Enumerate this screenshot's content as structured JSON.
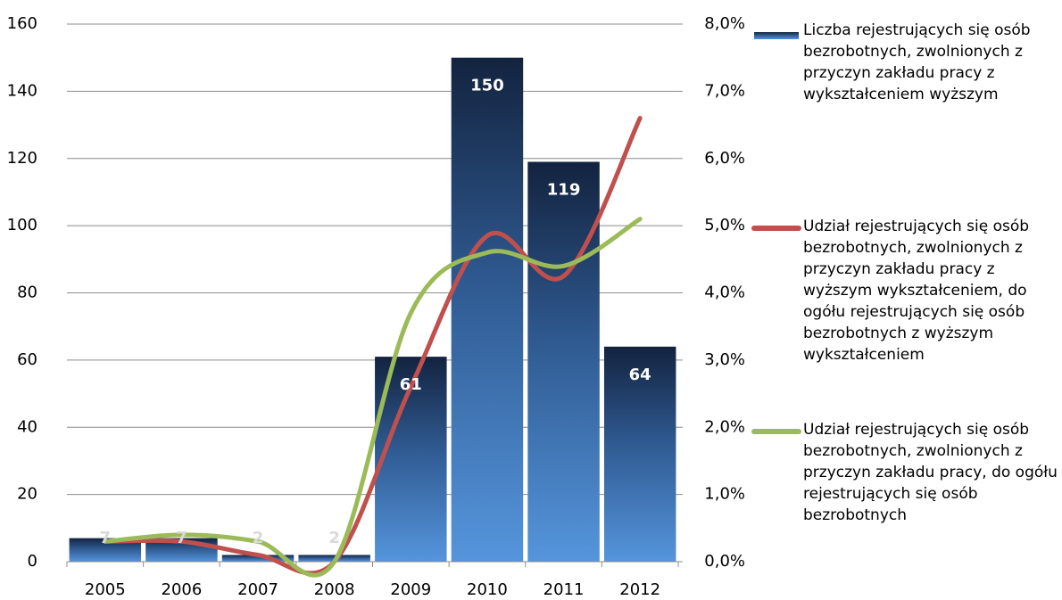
{
  "chart_data": {
    "type": "combo",
    "categories": [
      "2005",
      "2006",
      "2007",
      "2008",
      "2009",
      "2010",
      "2011",
      "2012"
    ],
    "series": [
      {
        "name": "Liczba rejestrujących się osób bezrobotnych, zwolnionych z przyczyn zakładu pracy z wykształceniem wyższym",
        "type": "bar",
        "color": "#4f8fd8",
        "values": [
          7,
          7,
          2,
          2,
          61,
          150,
          119,
          64
        ]
      },
      {
        "name": "Udział rejestrujących się osób bezrobotnych, zwolnionych z przyczyn zakładu pracy z wyższym wykształceniem, do ogółu rejestrujących się osób bezrobotnych z wyższym wykształceniem",
        "type": "line",
        "axis": "y2",
        "color": "#c0504d",
        "values": [
          0.3,
          0.3,
          0.1,
          0.0,
          2.6,
          4.85,
          4.25,
          6.6
        ]
      },
      {
        "name": "Udział rejestrujących się osób bezrobotnych, zwolnionych z przyczyn zakładu pracy, do ogółu rejestrujących się osób bezrobotnych",
        "type": "line",
        "axis": "y2",
        "color": "#9bbb59",
        "values": [
          0.3,
          0.4,
          0.3,
          0.0,
          3.7,
          4.6,
          4.4,
          5.1
        ]
      }
    ],
    "ylim": [
      0,
      160
    ],
    "yticks": [
      0,
      20,
      40,
      60,
      80,
      100,
      120,
      140,
      160
    ],
    "y2lim": [
      0,
      8
    ],
    "y2ticks": [
      {
        "value": 0,
        "label": "0,0%"
      },
      {
        "value": 1,
        "label": "1,0%"
      },
      {
        "value": 2,
        "label": "2,0%"
      },
      {
        "value": 3,
        "label": "3,0%"
      },
      {
        "value": 4,
        "label": "4,0%"
      },
      {
        "value": 5,
        "label": "5,0%"
      },
      {
        "value": 6,
        "label": "6,0%"
      },
      {
        "value": 7,
        "label": "7,0%"
      },
      {
        "value": 8,
        "label": "8,0%"
      }
    ],
    "grid": true,
    "legend": "right"
  }
}
